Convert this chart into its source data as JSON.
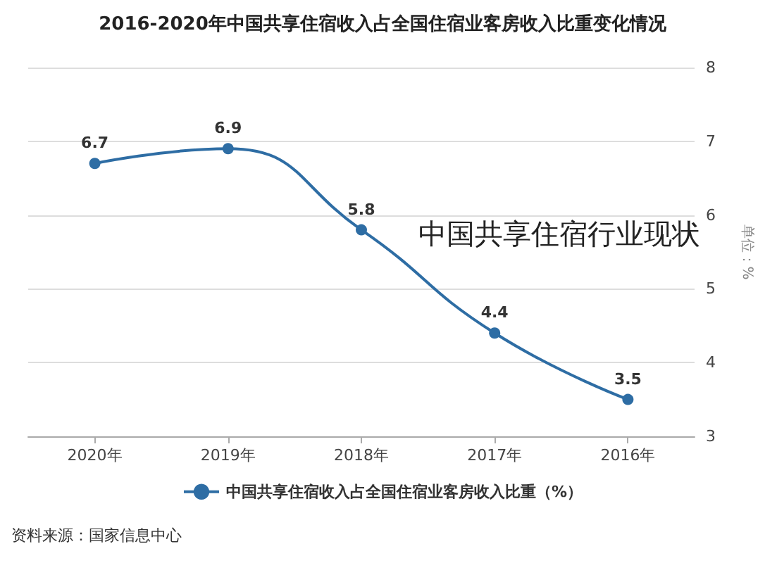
{
  "chart_data": {
    "type": "line",
    "title": "2016-2020年中国共享住宿收入占全国住宿业客房收入比重变化情况",
    "ylabel": "单位：%",
    "categories": [
      "2020年",
      "2019年",
      "2018年",
      "2017年",
      "2016年"
    ],
    "series": [
      {
        "name": "中国共享住宿收入占全国住宿业客房收入比重（%）",
        "color": "#2e6da4",
        "values": [
          6.7,
          6.9,
          5.8,
          4.4,
          3.5
        ]
      }
    ],
    "ylim": [
      3,
      8
    ],
    "yticks": [
      3,
      4,
      5,
      6,
      7,
      8
    ],
    "grid": "y",
    "legend": "bottom",
    "marker": "circle",
    "data_labels": true,
    "annotations": [
      "中国共享住宿行业现状",
      "资料来源：国家信息中心"
    ]
  }
}
